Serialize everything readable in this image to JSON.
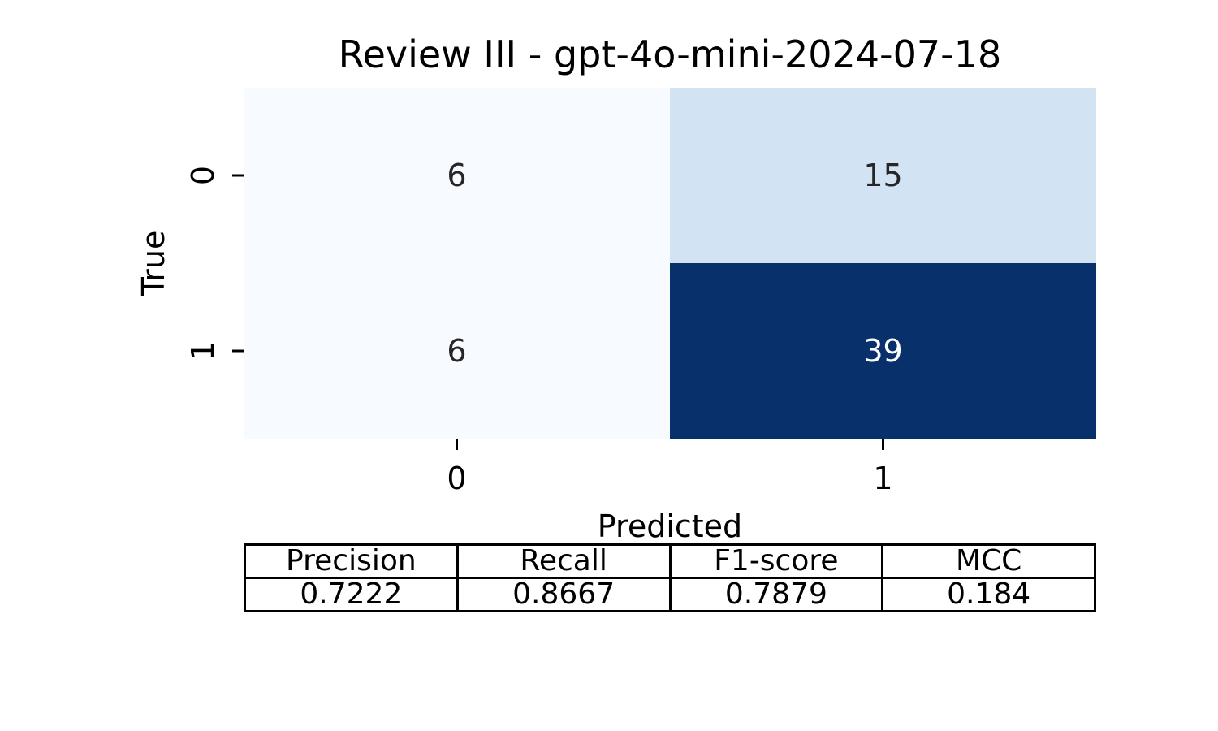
{
  "chart_data": {
    "type": "heatmap",
    "title": "Review III - gpt-4o-mini-2024-07-18",
    "xlabel": "Predicted",
    "ylabel": "True",
    "x_categories": [
      "0",
      "1"
    ],
    "y_categories": [
      "0",
      "1"
    ],
    "values": [
      [
        6,
        15
      ],
      [
        6,
        39
      ]
    ],
    "colormap": "Blues",
    "color_low": "#f7fbff",
    "color_mid": "#c1d8ed",
    "color_high": "#08306b",
    "colorbar": false
  },
  "metrics": {
    "headers": [
      "Precision",
      "Recall",
      "F1-score",
      "MCC"
    ],
    "values": [
      "0.7222",
      "0.8667",
      "0.7879",
      "0.184"
    ]
  }
}
